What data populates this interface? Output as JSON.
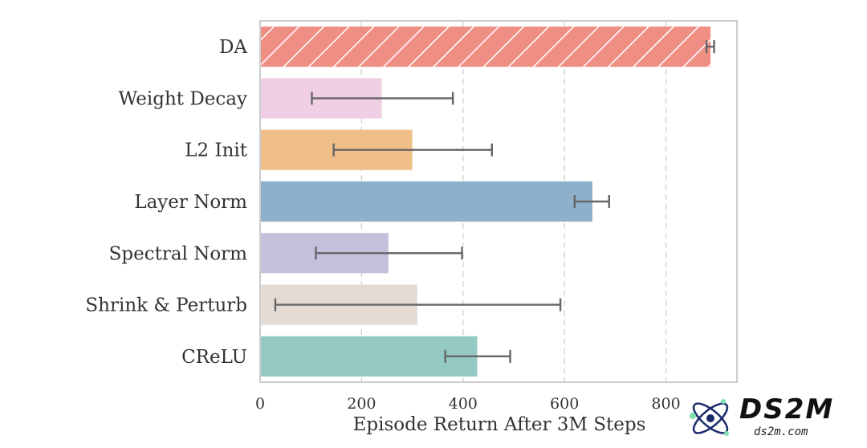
{
  "chart_data": {
    "type": "bar",
    "orientation": "horizontal",
    "title": "",
    "xlabel": "Episode Return After 3M Steps",
    "ylabel": "",
    "xlim": [
      0,
      940
    ],
    "x_ticks": [
      0,
      200,
      400,
      600,
      800
    ],
    "x_tick_labels": [
      "0",
      "200",
      "400",
      "600",
      "800"
    ],
    "grid": "vertical dashed",
    "categories": [
      "DA",
      "Weight Decay",
      "L2 Init",
      "Layer Norm",
      "Spectral Norm",
      "Shrink & Perturb",
      "CReLU"
    ],
    "values": [
      888,
      240,
      300,
      655,
      253,
      310,
      428
    ],
    "error_low": [
      880,
      102,
      145,
      620,
      110,
      30,
      365
    ],
    "error_high": [
      895,
      380,
      457,
      688,
      398,
      592,
      493
    ],
    "colors": [
      "#ef8f84",
      "#f0cfe5",
      "#f0bf89",
      "#8fb0ca",
      "#c2c0db",
      "#e4dcd4",
      "#93c9c2"
    ],
    "hatched": [
      true,
      false,
      false,
      false,
      false,
      false,
      false
    ]
  },
  "watermark": {
    "brand": "DS2M",
    "url": "ds2m.com"
  }
}
